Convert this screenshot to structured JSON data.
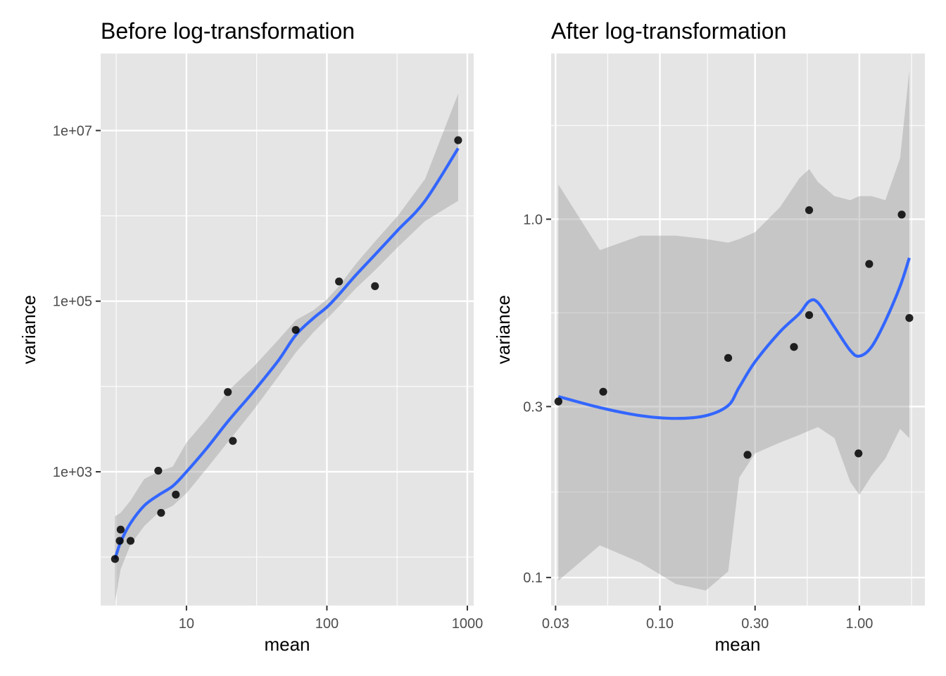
{
  "colors": {
    "panel_bg": "#e5e5e5",
    "grid": "#ffffff",
    "smooth_line": "#3366ff",
    "ribbon": "#999999",
    "point": "#000000"
  },
  "chart_data": [
    {
      "type": "scatter",
      "title": "Before log-transformation",
      "xlabel": "mean",
      "ylabel": "variance",
      "x_scale": "log10",
      "y_scale": "log10",
      "xlim": [
        2.45,
        1110
      ],
      "ylim": [
        27,
        80000000
      ],
      "x_ticks": [
        10,
        100,
        1000
      ],
      "x_tick_labels": [
        "10",
        "100",
        "1000"
      ],
      "y_ticks": [
        1000,
        100000,
        10000000
      ],
      "y_tick_labels": [
        "1e+03",
        "1e+05",
        "1e+07"
      ],
      "grid": true,
      "points": {
        "x": [
          3.1,
          3.4,
          3.35,
          4.0,
          6.3,
          6.6,
          8.4,
          19.7,
          21.4,
          60,
          122,
          220,
          860
        ],
        "y": [
          95,
          210,
          155,
          155,
          1030,
          330,
          540,
          8600,
          2300,
          46000,
          170000,
          150000,
          7700000
        ]
      },
      "smooth": {
        "x": [
          3.1,
          3.4,
          4.0,
          5.0,
          6.3,
          8.0,
          10.0,
          14.0,
          20.0,
          30.0,
          45.0,
          60.0,
          80.0,
          100,
          122,
          160,
          220,
          320,
          500,
          860
        ],
        "y": [
          95,
          150,
          250,
          400,
          530,
          680,
          1000,
          1900,
          4000,
          8700,
          20000,
          40000,
          63000,
          85000,
          120000,
          200000,
          350000,
          680000,
          1500000,
          6200000
        ],
        "ymin": [
          30,
          72,
          140,
          230,
          330,
          400,
          560,
          1100,
          2300,
          5300,
          13000,
          25000,
          43000,
          62000,
          87000,
          140000,
          230000,
          430000,
          870000,
          1500000
        ],
        "ymax": [
          300,
          330,
          460,
          820,
          1000,
          1150,
          2200,
          4200,
          9000,
          17000,
          35000,
          60000,
          78000,
          105000,
          150000,
          270000,
          500000,
          1000000,
          2700000,
          27000000
        ]
      }
    },
    {
      "type": "scatter",
      "title": "After log-transformation",
      "xlabel": "mean",
      "ylabel": "variance",
      "x_scale": "log10",
      "y_scale": "log10",
      "xlim": [
        0.0285,
        2.13
      ],
      "ylim": [
        0.0835,
        2.9
      ],
      "x_ticks": [
        0.03,
        0.1,
        0.3,
        1.0
      ],
      "x_tick_labels": [
        "0.03",
        "0.10",
        "0.30",
        "1.00"
      ],
      "y_ticks": [
        0.1,
        0.3,
        1.0
      ],
      "y_tick_labels": [
        "0.1",
        "0.3",
        "1.0"
      ],
      "grid": true,
      "points": {
        "x": [
          0.031,
          0.052,
          0.22,
          0.275,
          0.47,
          0.56,
          0.56,
          0.99,
          1.12,
          1.63,
          1.78
        ],
        "y": [
          0.31,
          0.33,
          0.41,
          0.22,
          0.44,
          0.54,
          1.06,
          0.222,
          0.75,
          1.03,
          0.53
        ]
      },
      "smooth": {
        "x": [
          0.031,
          0.05,
          0.08,
          0.12,
          0.17,
          0.22,
          0.25,
          0.3,
          0.4,
          0.5,
          0.56,
          0.62,
          0.75,
          0.9,
          1.0,
          1.15,
          1.35,
          1.6,
          1.78
        ],
        "y": [
          0.32,
          0.298,
          0.283,
          0.278,
          0.283,
          0.302,
          0.34,
          0.4,
          0.485,
          0.545,
          0.59,
          0.585,
          0.5,
          0.43,
          0.415,
          0.44,
          0.52,
          0.65,
          0.78
        ],
        "ymin": [
          0.098,
          0.123,
          0.11,
          0.096,
          0.092,
          0.104,
          0.19,
          0.222,
          0.238,
          0.25,
          0.257,
          0.263,
          0.245,
          0.185,
          0.17,
          0.192,
          0.215,
          0.26,
          0.245
        ],
        "ymax": [
          1.25,
          0.82,
          0.9,
          0.9,
          0.88,
          0.86,
          0.88,
          0.92,
          1.08,
          1.3,
          1.38,
          1.27,
          1.16,
          1.13,
          1.16,
          1.16,
          1.13,
          1.48,
          2.6
        ]
      }
    }
  ]
}
